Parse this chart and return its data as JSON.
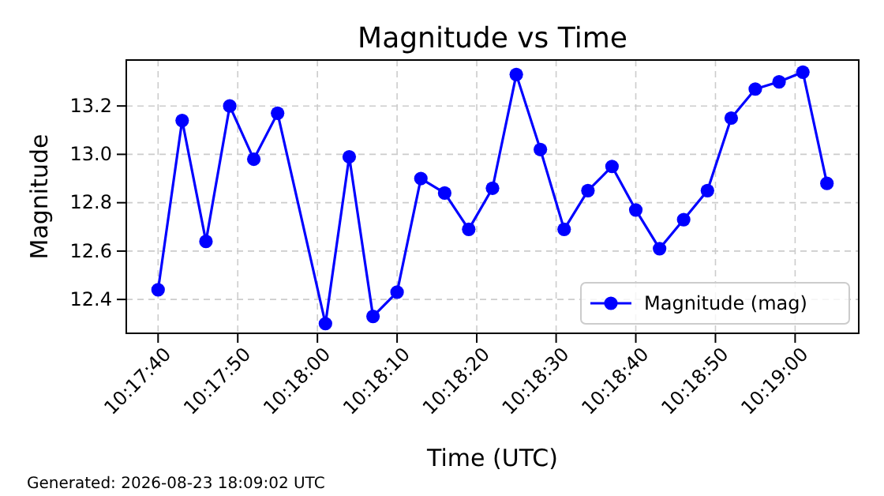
{
  "chart_data": {
    "type": "line",
    "title": "Magnitude vs Time",
    "xlabel": "Time (UTC)",
    "ylabel": "Magnitude",
    "annotations": [
      "Generated: 2026-08-23 18:09:02 UTC"
    ],
    "x": [
      10.29444,
      10.29528,
      10.29611,
      10.29694,
      10.29778,
      10.29861,
      10.30028,
      10.30111,
      10.30194,
      10.30278,
      10.30361,
      10.30444,
      10.30528,
      10.30611,
      10.30694,
      10.30778,
      10.30861,
      10.30944,
      10.31028,
      10.31111,
      10.31194,
      10.31278,
      10.31361,
      10.31444,
      10.31528,
      10.31611,
      10.31694,
      10.31778
    ],
    "series": [
      {
        "name": "Magnitude (mag)",
        "color": "#0000ff",
        "values": [
          12.44,
          13.14,
          12.64,
          13.2,
          12.98,
          13.17,
          12.3,
          12.99,
          12.33,
          12.43,
          12.9,
          12.84,
          12.69,
          12.86,
          13.33,
          13.02,
          12.69,
          12.85,
          12.95,
          12.77,
          12.61,
          12.73,
          12.85,
          13.15,
          13.27,
          13.3,
          13.34,
          12.88
        ]
      }
    ],
    "xlim": [
      10.29333,
      10.31889
    ],
    "xticks": [
      {
        "value": 10.29444,
        "label": "10:17:40"
      },
      {
        "value": 10.29722,
        "label": "10:17:50"
      },
      {
        "value": 10.3,
        "label": "10:18:00"
      },
      {
        "value": 10.30278,
        "label": "10:18:10"
      },
      {
        "value": 10.30556,
        "label": "10:18:20"
      },
      {
        "value": 10.30833,
        "label": "10:18:30"
      },
      {
        "value": 10.31111,
        "label": "10:18:40"
      },
      {
        "value": 10.31389,
        "label": "10:18:50"
      },
      {
        "value": 10.31667,
        "label": "10:19:00"
      }
    ],
    "ylim": [
      12.26,
      13.39
    ],
    "yticks": [
      {
        "value": 12.4,
        "label": "12.4"
      },
      {
        "value": 12.6,
        "label": "12.6"
      },
      {
        "value": 12.8,
        "label": "12.8"
      },
      {
        "value": 13.0,
        "label": "13.0"
      },
      {
        "value": 13.2,
        "label": "13.2"
      }
    ],
    "grid": true,
    "legend": "bottom right",
    "marker": "circle",
    "line_style": "solid"
  }
}
